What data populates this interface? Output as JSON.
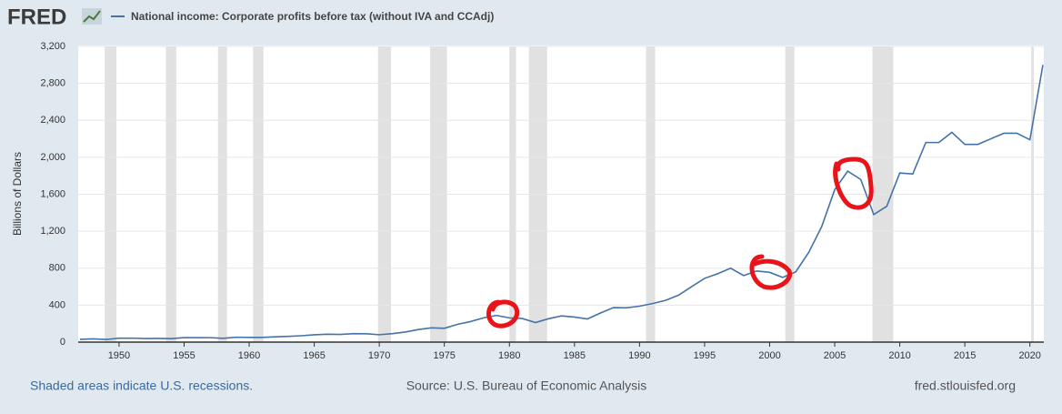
{
  "logo": "FRED",
  "chart_data": {
    "type": "line",
    "y_label": "Billions of Dollars",
    "note": "Shaded areas indicate U.S. recessions.",
    "source": "Source: U.S. Bureau of Economic Analysis",
    "site": "fred.stlouisfed.org",
    "x": [
      1947,
      1948,
      1949,
      1950,
      1951,
      1952,
      1953,
      1954,
      1955,
      1956,
      1957,
      1958,
      1959,
      1960,
      1961,
      1962,
      1963,
      1964,
      1965,
      1966,
      1967,
      1968,
      1969,
      1970,
      1971,
      1972,
      1973,
      1974,
      1975,
      1976,
      1977,
      1978,
      1979,
      1980,
      1981,
      1982,
      1983,
      1984,
      1985,
      1986,
      1987,
      1988,
      1989,
      1990,
      1991,
      1992,
      1993,
      1994,
      1995,
      1996,
      1997,
      1998,
      1999,
      2000,
      2001,
      2002,
      2003,
      2004,
      2005,
      2006,
      2007,
      2008,
      2009,
      2010,
      2011,
      2012,
      2013,
      2014,
      2015,
      2016,
      2017,
      2018,
      2019,
      2020,
      2021
    ],
    "series": [
      {
        "name": "National income: Corporate profits before tax (without IVA and CCAdj)",
        "color": "#4572a7",
        "values": [
          30,
          35,
          29,
          42,
          43,
          39,
          40,
          38,
          49,
          49,
          48,
          41,
          53,
          51,
          51,
          57,
          62,
          69,
          79,
          86,
          83,
          92,
          90,
          80,
          92,
          109,
          136,
          154,
          150,
          192,
          222,
          262,
          289,
          262,
          255,
          211,
          253,
          284,
          271,
          251,
          315,
          374,
          371,
          389,
          417,
          452,
          508,
          600,
          690,
          740,
          800,
          720,
          770,
          755,
          700,
          760,
          970,
          1250,
          1650,
          1850,
          1760,
          1380,
          1470,
          1830,
          1820,
          2160,
          2160,
          2270,
          2140,
          2140,
          2200,
          2260,
          2260,
          2190,
          3000
        ]
      }
    ],
    "xlim": [
      1947,
      2021
    ],
    "xticks": [
      1950,
      1955,
      1960,
      1965,
      1970,
      1975,
      1980,
      1985,
      1990,
      1995,
      2000,
      2005,
      2010,
      2015,
      2020
    ],
    "ylim": [
      0,
      3200
    ],
    "yticks": [
      0,
      400,
      800,
      {
        "value": 1200,
        "label": "1,200"
      },
      {
        "value": 1600,
        "label": "1,600"
      },
      {
        "value": 2000,
        "label": "2,000"
      },
      {
        "value": 2400,
        "label": "2,400"
      },
      {
        "value": 2800,
        "label": "2,800"
      },
      {
        "value": 3200,
        "label": "3,200"
      }
    ],
    "grid": true,
    "recessions": [
      [
        1948.9,
        1949.8
      ],
      [
        1953.6,
        1954.4
      ],
      [
        1957.6,
        1958.3
      ],
      [
        1960.3,
        1961.1
      ],
      [
        1969.9,
        1970.9
      ],
      [
        1973.9,
        1975.2
      ],
      [
        1980.0,
        1980.5
      ],
      [
        1981.5,
        1982.9
      ],
      [
        1990.5,
        1991.2
      ],
      [
        2001.2,
        2001.9
      ],
      [
        2007.9,
        2009.5
      ],
      [
        2020.1,
        2020.3
      ]
    ],
    "recession_color": "#e1e1e1"
  }
}
